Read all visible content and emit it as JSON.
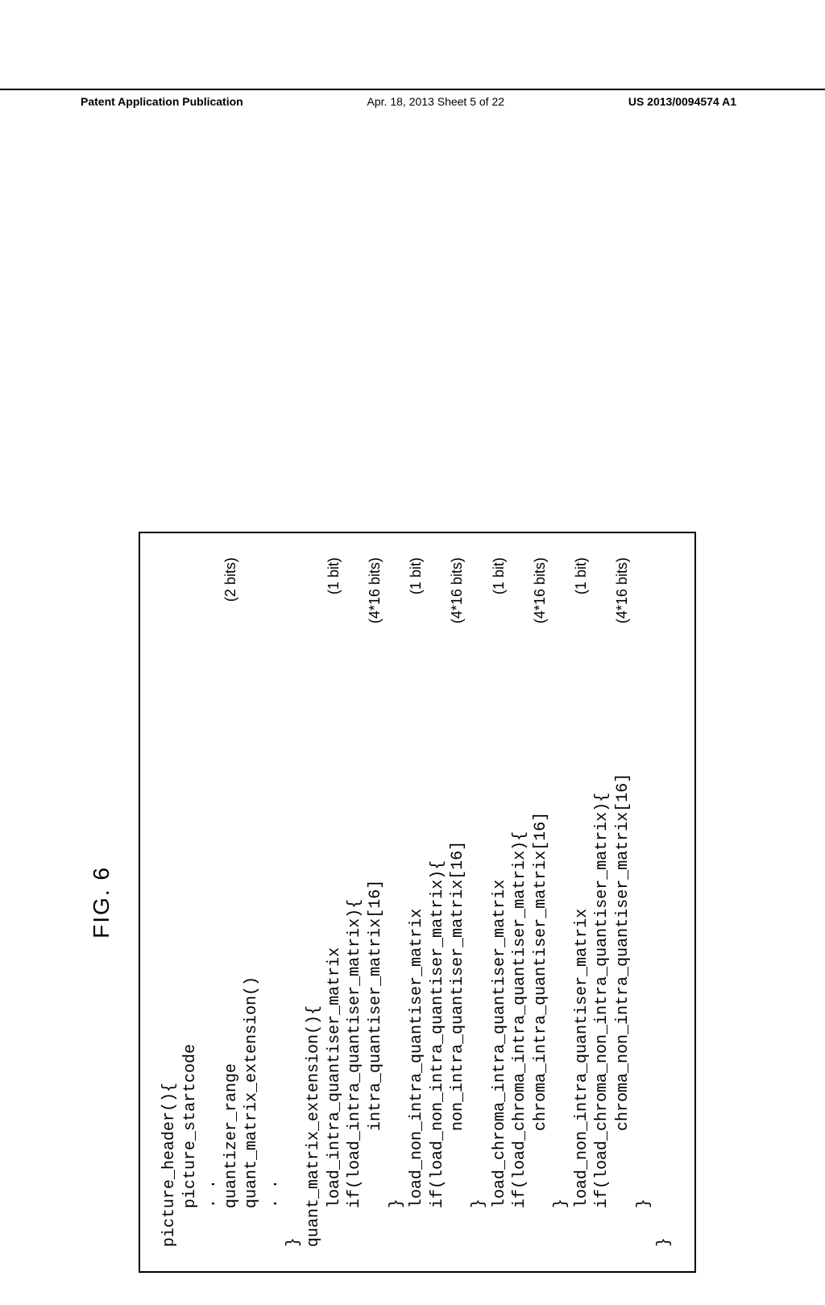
{
  "header": {
    "left": "Patent Application Publication",
    "center": "Apr. 18, 2013  Sheet 5 of 22",
    "right": "US 2013/0094574 A1"
  },
  "figure": {
    "label": "FIG. 6",
    "lines": [
      {
        "text": "picture_header(){",
        "bits": ""
      },
      {
        "text": "    picture_startcode",
        "bits": ""
      },
      {
        "text": "    . .",
        "bits": ""
      },
      {
        "text": "    quantizer_range",
        "bits": "(2 bits)"
      },
      {
        "text": "    quant_matrix_extension()",
        "bits": ""
      },
      {
        "text": "    . .",
        "bits": ""
      },
      {
        "text": "}",
        "bits": ""
      },
      {
        "text": "quant_matrix_extension(){",
        "bits": ""
      },
      {
        "text": "    load_intra_quantiser_matrix",
        "bits": "(1 bit)"
      },
      {
        "text": "    if(load_intra_quantiser_matrix){",
        "bits": ""
      },
      {
        "text": "            intra_quantiser_matrix[16]",
        "bits": "(4*16 bits)"
      },
      {
        "text": "    }",
        "bits": ""
      },
      {
        "text": "    load_non_intra_quantiser_matrix",
        "bits": "(1 bit)"
      },
      {
        "text": "    if(load_non_intra_quantiser_matrix){",
        "bits": ""
      },
      {
        "text": "            non_intra_quantiser_matrix[16]",
        "bits": "(4*16 bits)"
      },
      {
        "text": "    }",
        "bits": ""
      },
      {
        "text": "    load_chroma_intra_quantiser_matrix",
        "bits": "(1 bit)"
      },
      {
        "text": "    if(load_chroma_intra_quantiser_matrix){",
        "bits": ""
      },
      {
        "text": "            chroma_intra_quantiser_matrix[16]",
        "bits": "(4*16 bits)"
      },
      {
        "text": "    }",
        "bits": ""
      },
      {
        "text": "    load_non_intra_quantiser_matrix",
        "bits": "(1 bit)"
      },
      {
        "text": "    if(load_chroma_non_intra_quantiser_matrix){",
        "bits": ""
      },
      {
        "text": "            chroma_non_intra_quantiser_matrix[16]",
        "bits": "(4*16 bits)"
      },
      {
        "text": "    }",
        "bits": ""
      },
      {
        "text": "}",
        "bits": ""
      }
    ]
  }
}
